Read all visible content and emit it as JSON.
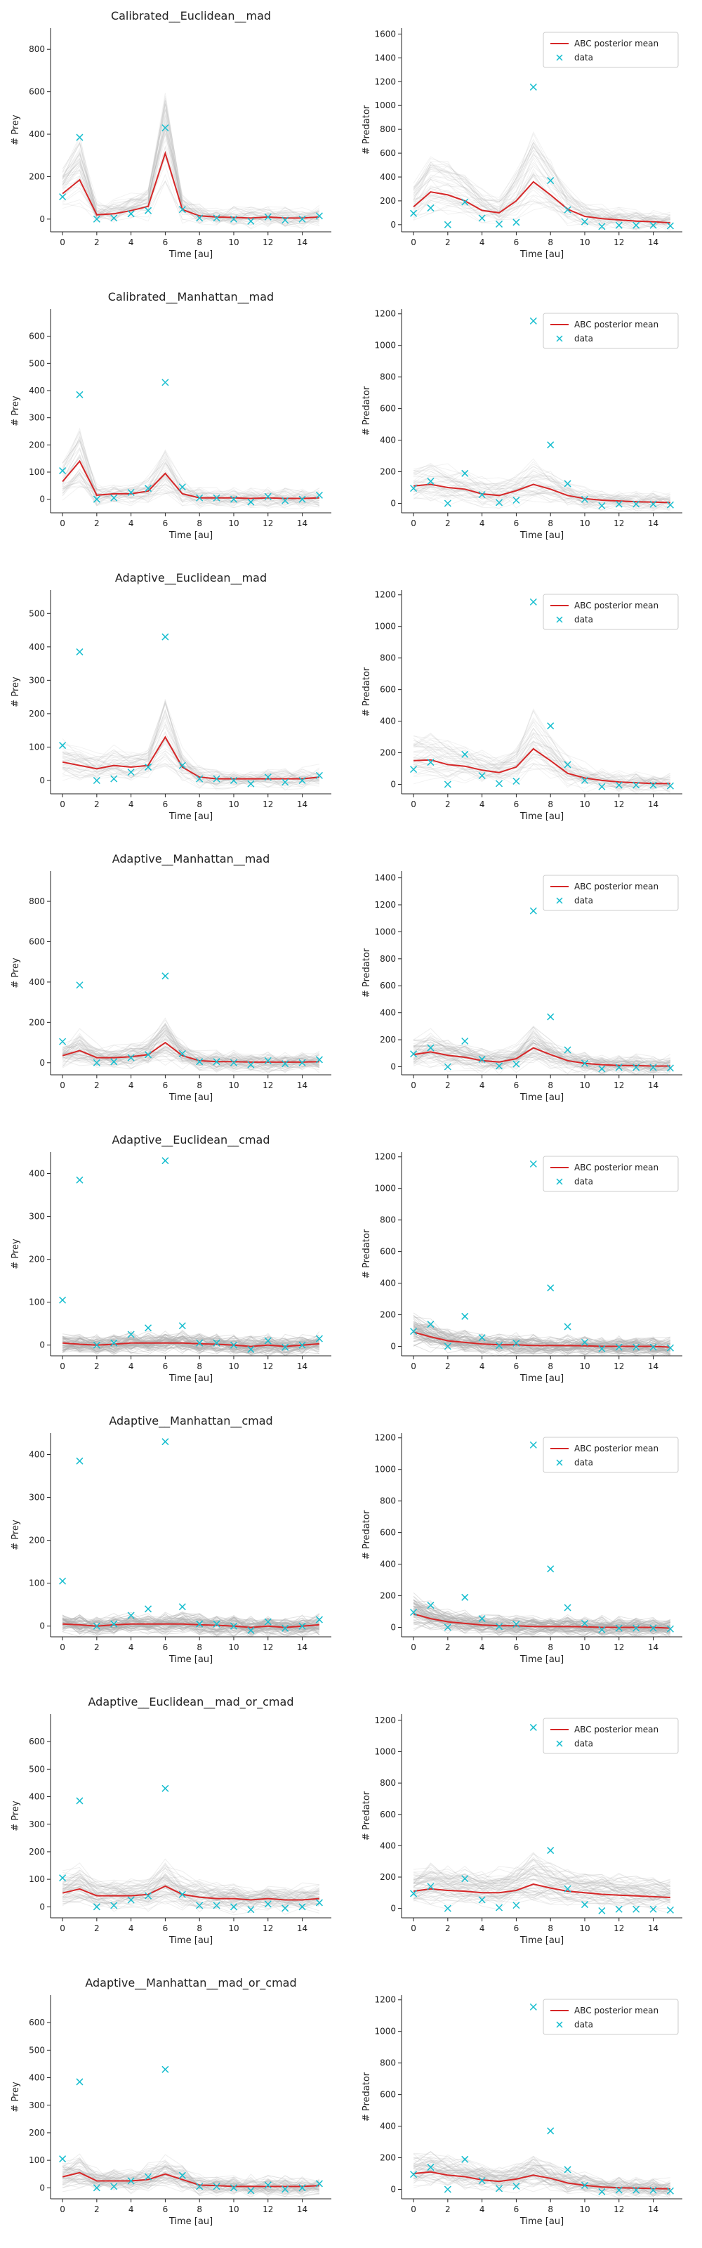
{
  "xlabel": "Time [au]",
  "ylabel_prey": "# Prey",
  "ylabel_predator": "# Predator",
  "legend": {
    "mean": "ABC posterior mean",
    "data": "data"
  },
  "colors": {
    "mean": "#d62728",
    "data": "#17becf",
    "samples": "#b0b0b0",
    "axis": "#222222"
  },
  "x_ticks": [
    0,
    2,
    4,
    6,
    8,
    10,
    12,
    14
  ],
  "chart_data": [
    {
      "type": "line",
      "title": "Calibrated__Euclidean__mad",
      "prey": {
        "ylim": [
          -60,
          900
        ],
        "yticks": [
          0,
          200,
          400,
          600,
          800
        ],
        "mean": [
          120,
          185,
          20,
          25,
          40,
          60,
          310,
          45,
          15,
          10,
          8,
          5,
          10,
          5,
          5,
          10
        ],
        "samples_level": "light"
      },
      "predator": {
        "ylim": [
          -60,
          1650
        ],
        "yticks": [
          0,
          200,
          400,
          600,
          800,
          1000,
          1200,
          1400,
          1600
        ],
        "mean": [
          150,
          275,
          250,
          200,
          120,
          100,
          200,
          360,
          250,
          130,
          70,
          50,
          40,
          30,
          25,
          15
        ],
        "legend": true,
        "samples_level": "light"
      }
    },
    {
      "type": "line",
      "title": "Calibrated__Manhattan__mad",
      "prey": {
        "ylim": [
          -50,
          700
        ],
        "yticks": [
          0,
          100,
          200,
          300,
          400,
          500,
          600
        ],
        "mean": [
          65,
          140,
          15,
          20,
          20,
          30,
          95,
          20,
          5,
          5,
          5,
          3,
          5,
          3,
          3,
          5
        ],
        "samples_level": "light"
      },
      "predator": {
        "ylim": [
          -60,
          1230
        ],
        "yticks": [
          0,
          200,
          400,
          600,
          800,
          1000,
          1200
        ],
        "mean": [
          110,
          120,
          100,
          90,
          60,
          50,
          80,
          120,
          90,
          50,
          30,
          20,
          15,
          10,
          8,
          5
        ],
        "legend": true,
        "samples_level": "light"
      }
    },
    {
      "type": "line",
      "title": "Adaptive__Euclidean__mad",
      "prey": {
        "ylim": [
          -40,
          570
        ],
        "yticks": [
          0,
          100,
          200,
          300,
          400,
          500
        ],
        "mean": [
          55,
          45,
          35,
          45,
          40,
          45,
          130,
          40,
          10,
          5,
          5,
          5,
          5,
          5,
          5,
          10
        ],
        "samples_level": "light"
      },
      "predator": {
        "ylim": [
          -60,
          1230
        ],
        "yticks": [
          0,
          200,
          400,
          600,
          800,
          1000,
          1200
        ],
        "mean": [
          150,
          155,
          125,
          115,
          90,
          75,
          110,
          225,
          150,
          70,
          40,
          25,
          15,
          10,
          5,
          5
        ],
        "legend": true,
        "samples_level": "light"
      }
    },
    {
      "type": "line",
      "title": "Adaptive__Manhattan__mad",
      "prey": {
        "ylim": [
          -60,
          950
        ],
        "yticks": [
          0,
          200,
          400,
          600,
          800
        ],
        "mean": [
          35,
          60,
          25,
          25,
          30,
          40,
          100,
          35,
          10,
          5,
          5,
          3,
          3,
          3,
          3,
          5
        ],
        "samples_level": "medium"
      },
      "predator": {
        "ylim": [
          -60,
          1450
        ],
        "yticks": [
          0,
          200,
          400,
          600,
          800,
          1000,
          1200,
          1400
        ],
        "mean": [
          90,
          110,
          85,
          70,
          45,
          35,
          60,
          140,
          90,
          45,
          25,
          15,
          10,
          8,
          5,
          5
        ],
        "legend": true,
        "samples_level": "medium"
      }
    },
    {
      "type": "line",
      "title": "Adaptive__Euclidean__cmad",
      "prey": {
        "ylim": [
          -25,
          450
        ],
        "yticks": [
          0,
          100,
          200,
          300,
          400
        ],
        "mean": [
          5,
          2,
          0,
          2,
          5,
          5,
          5,
          5,
          3,
          2,
          0,
          -3,
          0,
          -3,
          0,
          3
        ],
        "samples_level": "dark"
      },
      "predator": {
        "ylim": [
          -60,
          1230
        ],
        "yticks": [
          0,
          200,
          400,
          600,
          800,
          1000,
          1200
        ],
        "mean": [
          90,
          60,
          35,
          25,
          15,
          10,
          10,
          5,
          5,
          5,
          3,
          0,
          0,
          0,
          0,
          -5
        ],
        "legend": true,
        "samples_level": "dark"
      }
    },
    {
      "type": "line",
      "title": "Adaptive__Manhattan__cmad",
      "prey": {
        "ylim": [
          -25,
          450
        ],
        "yticks": [
          0,
          100,
          200,
          300,
          400
        ],
        "mean": [
          5,
          3,
          0,
          3,
          5,
          5,
          5,
          5,
          3,
          2,
          0,
          -3,
          0,
          -3,
          0,
          3
        ],
        "samples_level": "dark"
      },
      "predator": {
        "ylim": [
          -60,
          1230
        ],
        "yticks": [
          0,
          200,
          400,
          600,
          800,
          1000,
          1200
        ],
        "mean": [
          85,
          55,
          35,
          25,
          15,
          10,
          10,
          5,
          5,
          5,
          3,
          0,
          0,
          0,
          0,
          -5
        ],
        "legend": true,
        "samples_level": "dark"
      }
    },
    {
      "type": "line",
      "title": "Adaptive__Euclidean__mad_or_cmad",
      "prey": {
        "ylim": [
          -40,
          700
        ],
        "yticks": [
          0,
          100,
          200,
          300,
          400,
          500,
          600
        ],
        "mean": [
          50,
          65,
          40,
          40,
          40,
          45,
          75,
          45,
          35,
          30,
          30,
          25,
          30,
          25,
          25,
          30
        ],
        "samples_level": "medium"
      },
      "predator": {
        "ylim": [
          -60,
          1240
        ],
        "yticks": [
          0,
          200,
          400,
          600,
          800,
          1000,
          1200
        ],
        "mean": [
          110,
          125,
          115,
          110,
          100,
          100,
          115,
          155,
          130,
          110,
          100,
          90,
          85,
          80,
          75,
          70
        ],
        "legend": true,
        "samples_level": "medium"
      }
    },
    {
      "type": "line",
      "title": "Adaptive__Manhattan__mad_or_cmad",
      "prey": {
        "ylim": [
          -40,
          700
        ],
        "yticks": [
          0,
          100,
          200,
          300,
          400,
          500,
          600
        ],
        "mean": [
          40,
          55,
          25,
          25,
          25,
          30,
          50,
          30,
          10,
          8,
          5,
          5,
          5,
          5,
          5,
          8
        ],
        "samples_level": "medium"
      },
      "predator": {
        "ylim": [
          -60,
          1230
        ],
        "yticks": [
          0,
          200,
          400,
          600,
          800,
          1000,
          1200
        ],
        "mean": [
          100,
          110,
          90,
          80,
          60,
          50,
          65,
          90,
          70,
          40,
          25,
          15,
          10,
          8,
          5,
          3
        ],
        "legend": true,
        "samples_level": "medium"
      }
    }
  ],
  "observed": {
    "x": [
      0,
      1,
      2,
      3,
      4,
      5,
      6,
      7,
      8,
      9,
      10,
      11,
      12,
      13,
      14,
      15
    ],
    "prey": [
      105,
      385,
      0,
      5,
      25,
      40,
      430,
      45,
      5,
      5,
      0,
      -10,
      10,
      -5,
      0,
      15
    ],
    "predator": [
      95,
      140,
      0,
      190,
      55,
      5,
      20,
      1155,
      370,
      125,
      25,
      -15,
      -5,
      -5,
      -5,
      -10
    ]
  }
}
